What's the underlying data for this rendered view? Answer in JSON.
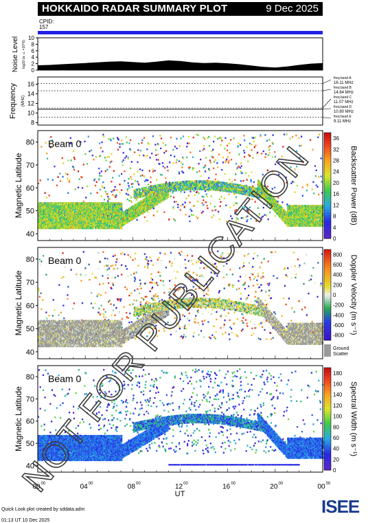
{
  "header": {
    "title": "HOKKAIDO RADAR SUMMARY PLOT",
    "date": "9 Dec 2025"
  },
  "cpid": {
    "label": "CPID:",
    "value": "157"
  },
  "watermark": "NOT FOR PUBLICATION",
  "footer": {
    "line1": "Quick Look plot created by sddata.adm",
    "line2": "01:13 UT 10 Dec 2025"
  },
  "logo": {
    "text": "ISEE"
  },
  "colors": {
    "cpid_bar": "#1f1fe8",
    "ground_scatter": "#9a9a9a"
  },
  "chart_data": [
    {
      "type": "area",
      "name": "noise",
      "ylabel": "Noise Level",
      "ylabel_sub": "log10 (a. u. ×10^6)",
      "yticks": [
        "0",
        "2",
        "4",
        "6",
        "8",
        "10"
      ],
      "ylim": [
        0,
        10
      ],
      "x": [
        0,
        1,
        2,
        3,
        4,
        5,
        6,
        7,
        8,
        9,
        10,
        11,
        12,
        13,
        14,
        15,
        16,
        17,
        18,
        19,
        20,
        21,
        22,
        23,
        24
      ],
      "values": [
        1.5,
        1.6,
        1.8,
        2.0,
        2.2,
        2.4,
        2.6,
        2.7,
        2.5,
        2.3,
        2.6,
        3.0,
        2.8,
        2.4,
        2.2,
        2.3,
        2.1,
        1.8,
        1.4,
        1.0,
        0.8,
        1.1,
        1.6,
        2.0,
        2.2
      ]
    },
    {
      "type": "line",
      "name": "frequency",
      "ylabel": "Frequency",
      "ylabel_unit": "(MHz)",
      "yticks": [
        "8",
        "10",
        "12",
        "14",
        "16"
      ],
      "ylim": [
        7.5,
        17.5
      ],
      "bands": [
        {
          "label": "freq band A",
          "value_label": "16.11 MHz",
          "mhz": 16.11
        },
        {
          "label": "freq band B",
          "value_label": "14.64 MHz",
          "mhz": 14.64
        },
        {
          "label": "freq band C",
          "value_label": "11.07 MHz",
          "mhz": 11.07
        },
        {
          "label": "freq band D",
          "value_label": "10.80 MHz",
          "mhz": 10.8
        },
        {
          "label": "freq band E",
          "value_label": "9.11 MHz",
          "mhz": 9.11
        }
      ],
      "active_mhz": 10.8
    },
    {
      "type": "heatmap",
      "name": "power",
      "beam_label": "Beam 0",
      "ylabel": "Magnetic Latitude",
      "yticks": [
        "40",
        "50",
        "60",
        "70",
        "80"
      ],
      "ylim": [
        37,
        85
      ],
      "colorbar_label": "Backscatter Power (dB)",
      "colorbar_ticks": [
        "0",
        "4",
        "8",
        "12",
        "16",
        "20",
        "24",
        "28",
        "32",
        "36"
      ],
      "clim": [
        0,
        38
      ]
    },
    {
      "type": "heatmap",
      "name": "velocity",
      "beam_label": "Beam 0",
      "ylabel": "Magnetic Latitude",
      "yticks": [
        "40",
        "50",
        "60",
        "70",
        "80"
      ],
      "ylim": [
        37,
        85
      ],
      "colorbar_label": "Doppler Velocity (m s⁻¹)",
      "colorbar_ticks": [
        "-800",
        "-600",
        "-400",
        "-200",
        "0",
        "200",
        "400",
        "600",
        "800"
      ],
      "clim": [
        -900,
        900
      ],
      "ground_label": "Ground",
      "ground_label2": "Scatter"
    },
    {
      "type": "heatmap",
      "name": "width",
      "beam_label": "Beam 0",
      "ylabel": "Magnetic Latitude",
      "yticks": [
        "40",
        "50",
        "60",
        "70",
        "80"
      ],
      "ylim": [
        37,
        85
      ],
      "colorbar_label": "Spectral Width (m s⁻¹)",
      "colorbar_ticks": [
        "0",
        "20",
        "40",
        "60",
        "80",
        "100",
        "120",
        "140",
        "160",
        "180"
      ],
      "clim": [
        0,
        190
      ],
      "xlabel": "UT",
      "xticks": [
        "00",
        "04",
        "08",
        "12",
        "16",
        "20",
        "00"
      ],
      "xtick_sup": "00"
    }
  ]
}
